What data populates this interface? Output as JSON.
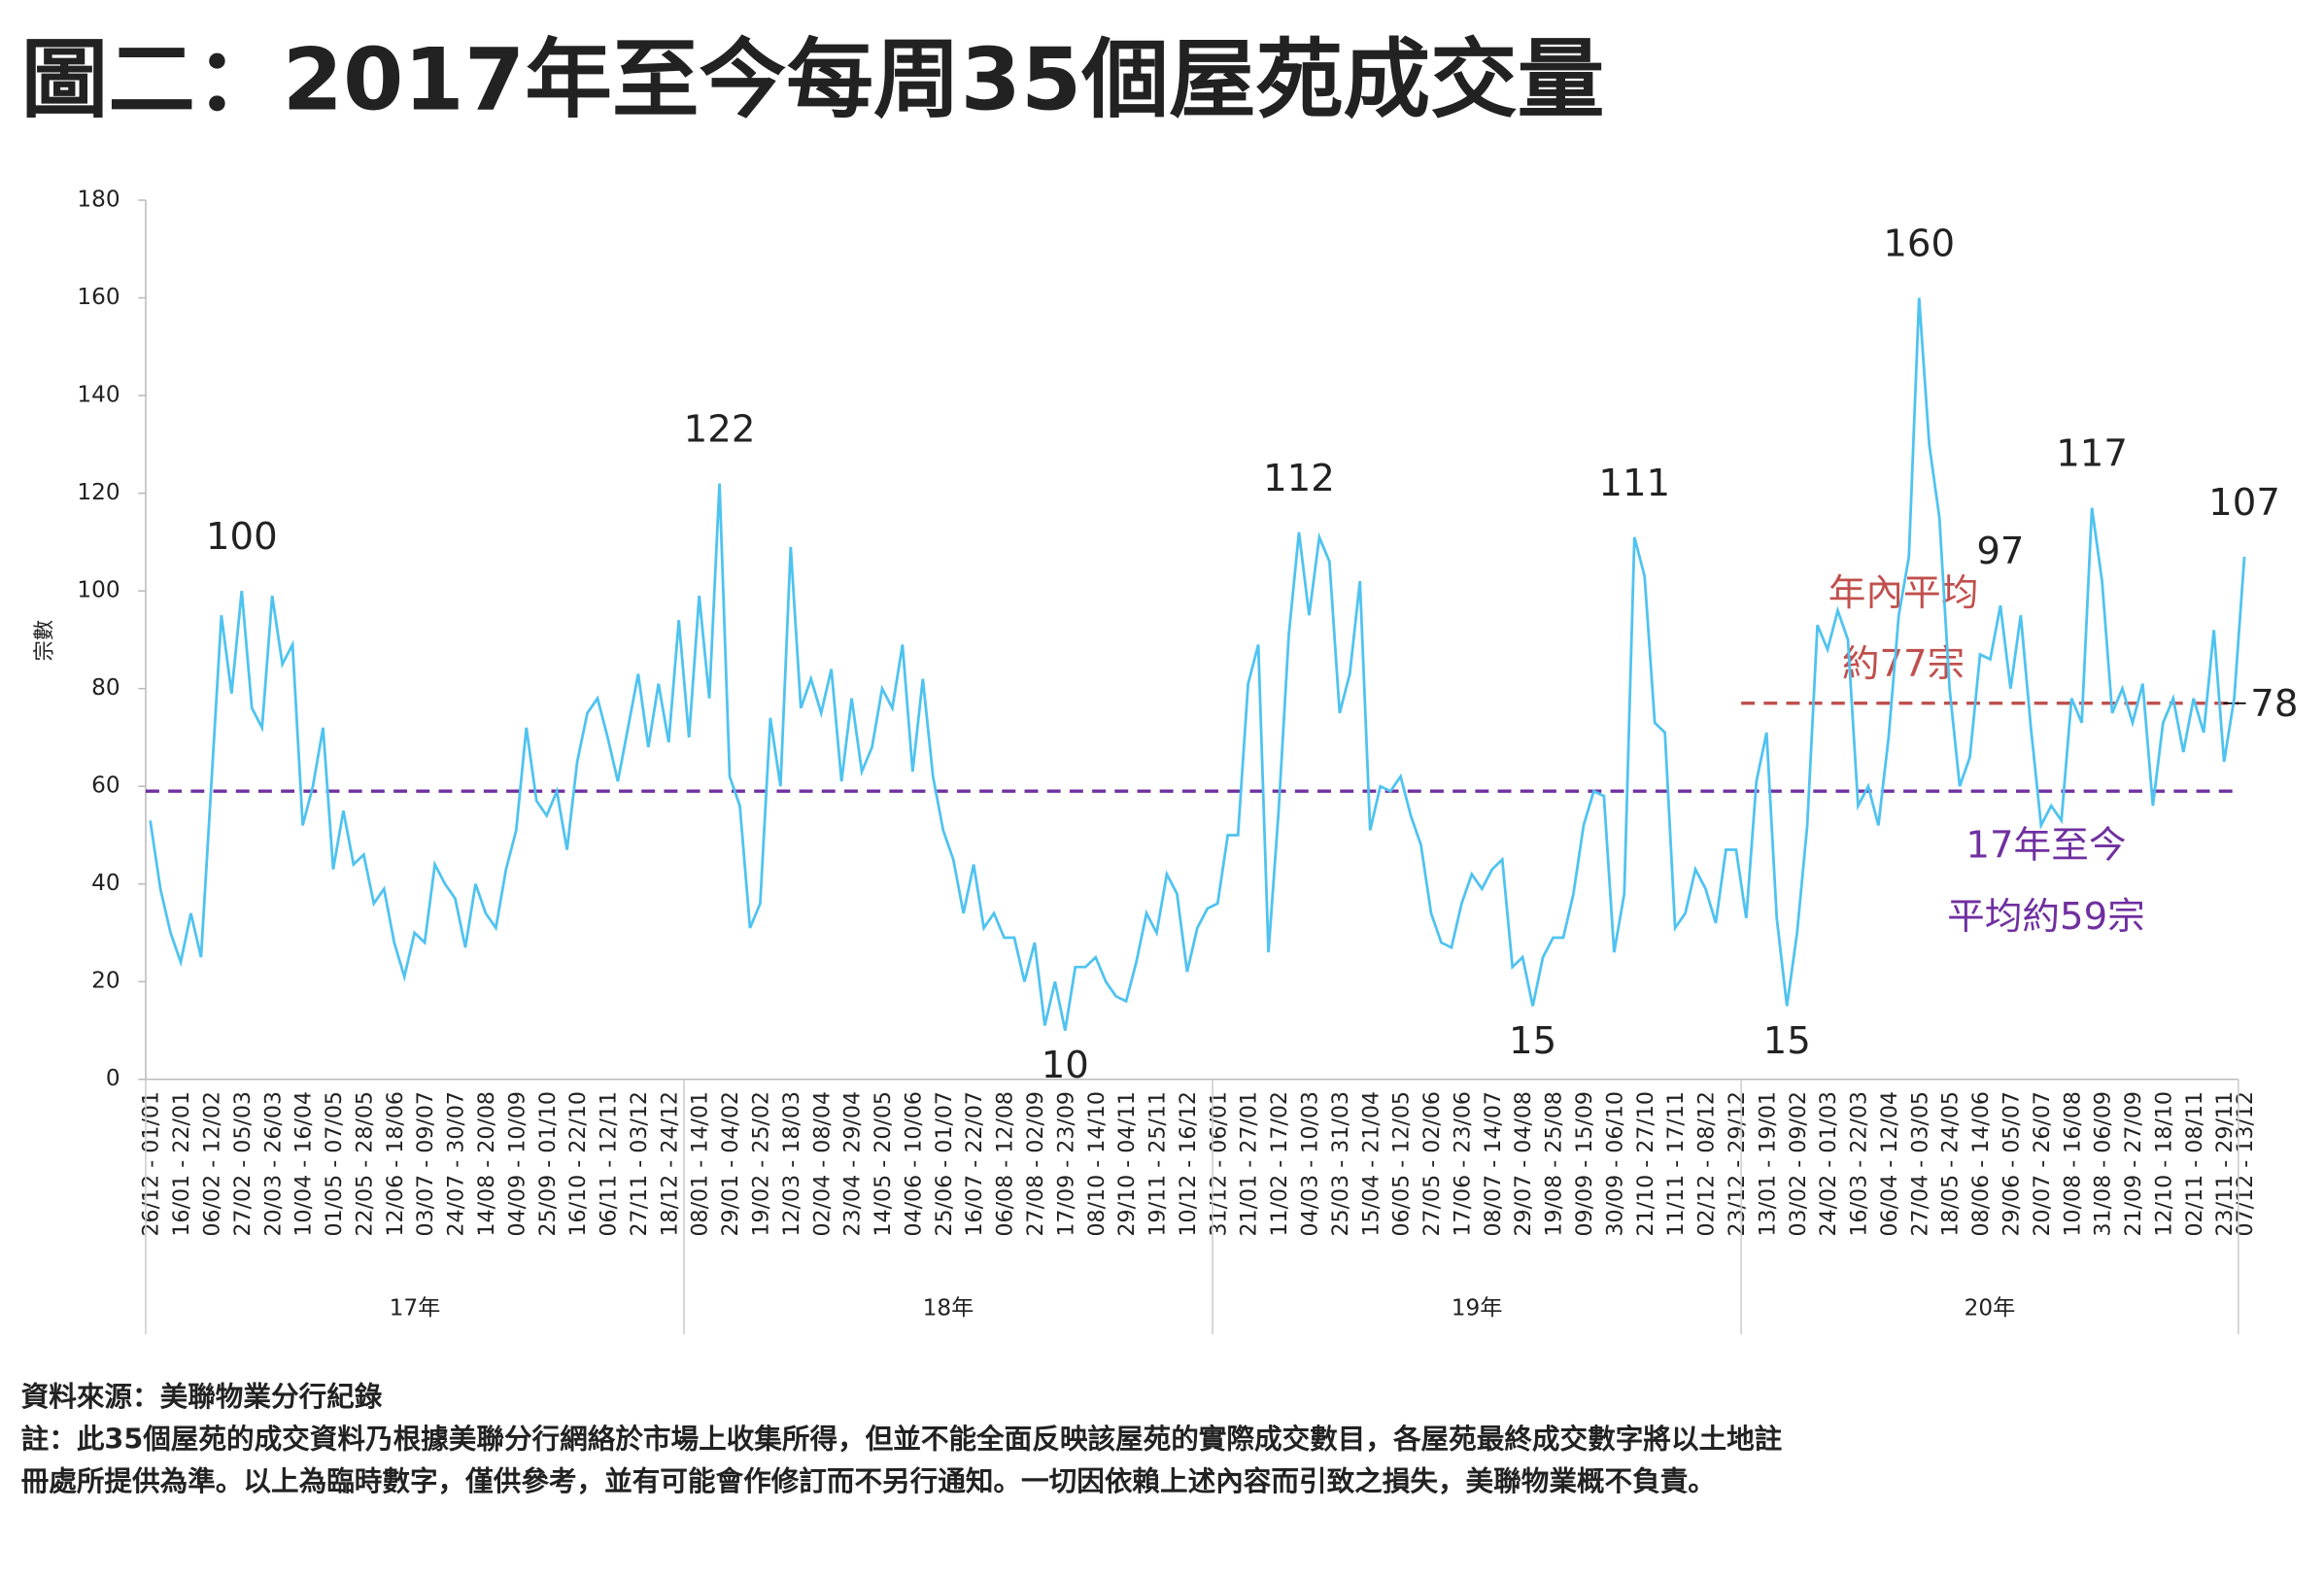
{
  "chart_data": {
    "type": "line",
    "title": "圖二：2017年至今每周35個屋苑成交量",
    "y_label": "宗數",
    "ylim": [
      0,
      180
    ],
    "yticks": [
      0,
      20,
      40,
      60,
      80,
      100,
      120,
      140,
      160,
      180
    ],
    "categories": [
      "26/12 - 01/01",
      null,
      null,
      "16/01 - 22/01",
      null,
      null,
      "06/02 - 12/02",
      null,
      null,
      "27/02 - 05/03",
      null,
      null,
      "20/03 - 26/03",
      null,
      null,
      "10/04 - 16/04",
      null,
      null,
      "01/05 - 07/05",
      null,
      null,
      "22/05 - 28/05",
      null,
      null,
      "12/06 - 18/06",
      null,
      null,
      "03/07 - 09/07",
      null,
      null,
      "24/07 - 30/07",
      null,
      null,
      "14/08 - 20/08",
      null,
      null,
      "04/09 - 10/09",
      null,
      null,
      "25/09 - 01/10",
      null,
      null,
      "16/10 - 22/10",
      null,
      null,
      "06/11 - 12/11",
      null,
      null,
      "27/11 - 03/12",
      null,
      null,
      "18/12 - 24/12",
      null,
      null,
      "08/01 - 14/01",
      null,
      null,
      "29/01 - 04/02",
      null,
      null,
      "19/02 - 25/02",
      null,
      null,
      "12/03 - 18/03",
      null,
      null,
      "02/04 - 08/04",
      null,
      null,
      "23/04 - 29/04",
      null,
      null,
      "14/05 - 20/05",
      null,
      null,
      "04/06 - 10/06",
      null,
      null,
      "25/06 - 01/07",
      null,
      null,
      "16/07 - 22/07",
      null,
      null,
      "06/08 - 12/08",
      null,
      null,
      "27/08 - 02/09",
      null,
      null,
      "17/09 - 23/09",
      null,
      null,
      "08/10 - 14/10",
      null,
      null,
      "29/10 - 04/11",
      null,
      null,
      "19/11 - 25/11",
      null,
      null,
      "10/12 - 16/12",
      null,
      null,
      "31/12 - 06/01",
      null,
      null,
      "21/01 - 27/01",
      null,
      null,
      "11/02 - 17/02",
      null,
      null,
      "04/03 - 10/03",
      null,
      null,
      "25/03 - 31/03",
      null,
      null,
      "15/04 - 21/04",
      null,
      null,
      "06/05 - 12/05",
      null,
      null,
      "27/05 - 02/06",
      null,
      null,
      "17/06 - 23/06",
      null,
      null,
      "08/07 - 14/07",
      null,
      null,
      "29/07 - 04/08",
      null,
      null,
      "19/08 - 25/08",
      null,
      null,
      "09/09 - 15/09",
      null,
      null,
      "30/09 - 06/10",
      null,
      null,
      "21/10 - 27/10",
      null,
      null,
      "11/11 - 17/11",
      null,
      null,
      "02/12 - 08/12",
      null,
      null,
      "23/12 - 29/12",
      null,
      null,
      "13/01 - 19/01",
      null,
      null,
      "03/02 - 09/02",
      null,
      null,
      "24/02 - 01/03",
      null,
      null,
      "16/03 - 22/03",
      null,
      null,
      "06/04 - 12/04",
      null,
      null,
      "27/04 - 03/05",
      null,
      null,
      "18/05 - 24/05",
      null,
      null,
      "08/06 - 14/06",
      null,
      null,
      "29/06 - 05/07",
      null,
      null,
      "20/07 - 26/07",
      null,
      null,
      "10/08 - 16/08",
      null,
      null,
      "31/08 - 06/09",
      null,
      null,
      "21/09 - 27/09",
      null,
      null,
      "12/10 - 18/10",
      null,
      null,
      "02/11 - 08/11",
      null,
      null,
      "23/11 - 29/11",
      null,
      "07/12 - 13/12"
    ],
    "groups": [
      {
        "name": "17年",
        "count": 53
      },
      {
        "name": "18年",
        "count": 52
      },
      {
        "name": "19年",
        "count": 52
      },
      {
        "name": "20年",
        "count": 50
      }
    ],
    "series": [
      {
        "color": "#4fc3f0",
        "values": [
          53,
          39,
          30,
          24,
          34,
          25,
          60,
          95,
          79,
          100,
          76,
          72,
          99,
          85,
          89,
          52,
          60,
          72,
          43,
          55,
          44,
          46,
          36,
          39,
          28,
          21,
          30,
          28,
          44,
          40,
          37,
          27,
          40,
          34,
          31,
          43,
          51,
          72,
          57,
          54,
          59,
          47,
          65,
          75,
          78,
          70,
          61,
          72,
          83,
          68,
          81,
          69,
          94,
          70,
          99,
          78,
          122,
          62,
          56,
          31,
          36,
          74,
          60,
          109,
          76,
          82,
          75,
          84,
          61,
          78,
          63,
          68,
          80,
          76,
          89,
          63,
          82,
          62,
          51,
          45,
          34,
          44,
          31,
          34,
          29,
          29,
          20,
          28,
          11,
          20,
          10,
          23,
          23,
          25,
          20,
          17,
          16,
          24,
          34,
          30,
          42,
          38,
          22,
          31,
          35,
          36,
          50,
          50,
          81,
          89,
          26,
          55,
          91,
          112,
          95,
          111,
          106,
          75,
          83,
          102,
          51,
          60,
          59,
          62,
          54,
          48,
          34,
          28,
          27,
          36,
          42,
          39,
          43,
          45,
          23,
          25,
          15,
          25,
          29,
          29,
          38,
          52,
          59,
          58,
          26,
          38,
          111,
          103,
          73,
          71,
          31,
          34,
          43,
          39,
          32,
          47,
          47,
          33,
          61,
          71,
          33,
          15,
          30,
          52,
          93,
          88,
          96,
          90,
          56,
          60,
          52,
          70,
          95,
          107,
          160,
          130,
          115,
          80,
          60,
          66,
          87,
          86,
          97,
          80,
          95,
          72,
          52,
          56,
          53,
          78,
          73,
          117,
          102,
          75,
          80,
          73,
          81,
          56,
          73,
          78,
          67,
          78,
          71,
          92,
          65,
          78,
          107
        ]
      }
    ],
    "labeled_points": [
      9,
      56,
      90,
      113,
      136,
      146,
      161,
      174,
      182,
      191,
      206
    ],
    "reference_lines": [
      {
        "value": 59,
        "color": "#7030a0",
        "start": 0,
        "texts": [
          "17年至今",
          "平均約59宗"
        ]
      },
      {
        "value": 77,
        "color": "#c0504d",
        "start": 157,
        "texts": [
          "年內平均",
          "約77宗"
        ],
        "end_label": "78"
      }
    ],
    "footnotes": [
      "資料來源：美聯物業分行紀錄",
      "註：此35個屋苑的成交資料乃根據美聯分行網絡於市場上收集所得，但並不能全面反映該屋苑的實際成交數目，各屋苑最終成交數字將以土地註",
      "冊處所提供為準。以上為臨時數字，僅供參考，並有可能會作修訂而不另行通知。一切因依賴上述內容而引致之損失，美聯物業概不負責。"
    ]
  }
}
